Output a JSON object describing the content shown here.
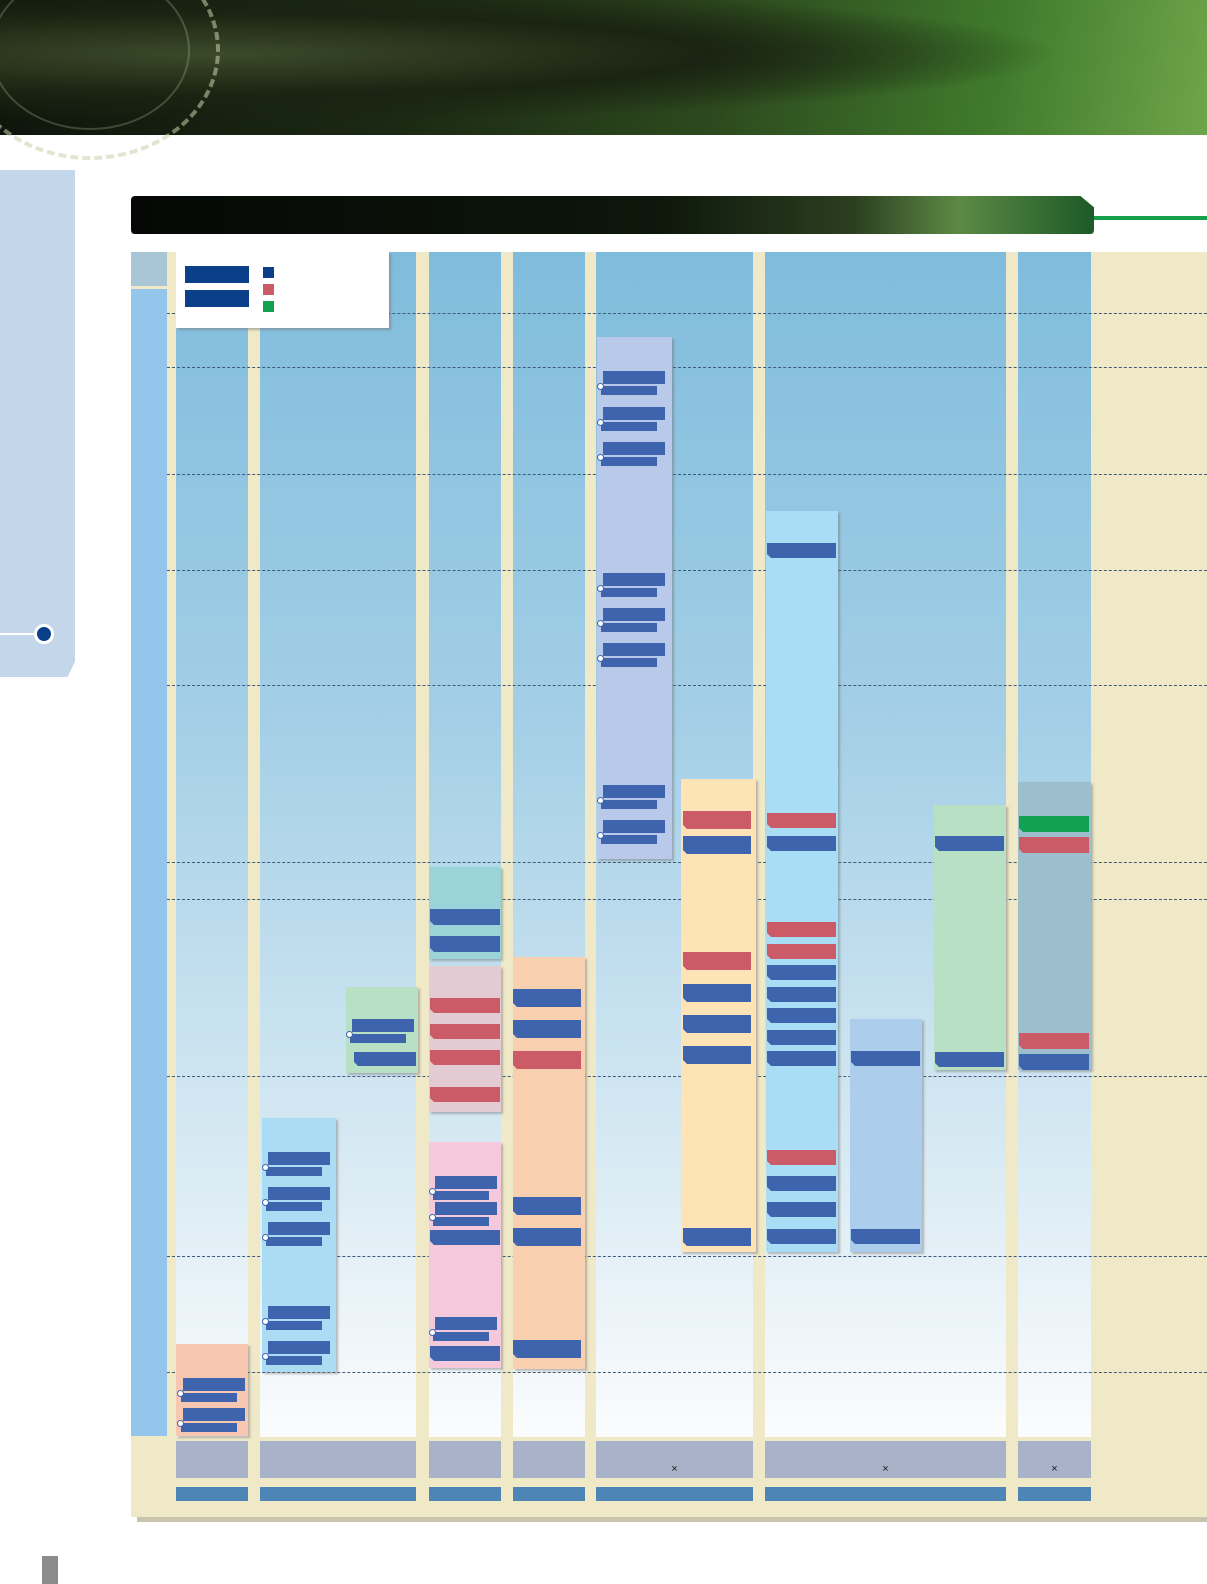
{
  "document": {
    "banner_icon": "camera-lens-ring",
    "title_bar_text": "",
    "legend": {
      "items": [
        {
          "color": "#3e64ae",
          "label": ""
        },
        {
          "color": "#ca5b67",
          "label": ""
        },
        {
          "color": "#12a24f",
          "label": ""
        }
      ]
    },
    "column_footers": [
      {
        "label": ""
      },
      {
        "label": ""
      },
      {
        "label": ""
      },
      {
        "label": ""
      },
      {
        "label": "×"
      },
      {
        "label": "×"
      },
      {
        "label": "×"
      }
    ],
    "colors": {
      "blue_item": "#3e64ae",
      "red_item": "#ca5b67",
      "green_item": "#12a24f",
      "frame": "#efe9c8",
      "accent_rule": "#15a04a"
    }
  }
}
